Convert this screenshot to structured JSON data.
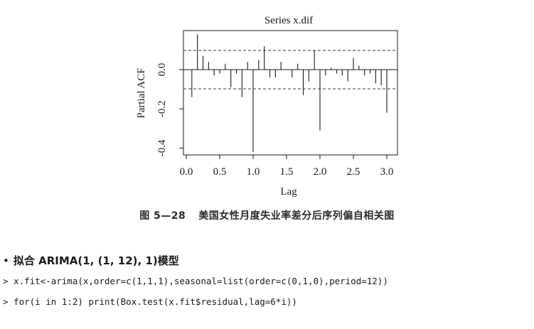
{
  "chart_data": {
    "type": "bar",
    "title": "Series x.dif",
    "xlabel": "Lag",
    "ylabel": "Partial ACF",
    "xlim": [
      0.0,
      3.05
    ],
    "ylim": [
      -0.44,
      0.19
    ],
    "xticks": [
      {
        "value": 0.0,
        "label": "0.0"
      },
      {
        "value": 0.5,
        "label": "0.5"
      },
      {
        "value": 1.0,
        "label": "1.0"
      },
      {
        "value": 1.5,
        "label": "1.5"
      },
      {
        "value": 2.0,
        "label": "2.0"
      },
      {
        "value": 2.5,
        "label": "2.5"
      },
      {
        "value": 3.0,
        "label": "3.0"
      }
    ],
    "yticks": [
      {
        "value": 0.0,
        "label": "0.0"
      },
      {
        "value": -0.2,
        "label": "-0.2"
      },
      {
        "value": -0.4,
        "label": "-0.4"
      }
    ],
    "confidence_band": [
      0.098,
      -0.098
    ],
    "lags": [
      0.0833,
      0.1667,
      0.25,
      0.3333,
      0.4167,
      0.5,
      0.5833,
      0.6667,
      0.75,
      0.8333,
      0.9167,
      1.0,
      1.0833,
      1.1667,
      1.25,
      1.3333,
      1.4167,
      1.5,
      1.5833,
      1.6667,
      1.75,
      1.8333,
      1.9167,
      2.0,
      2.0833,
      2.1667,
      2.25,
      2.3333,
      2.4167,
      2.5,
      2.5833,
      2.6667,
      2.75,
      2.8333,
      2.9167,
      3.0
    ],
    "values": [
      -0.14,
      0.18,
      0.07,
      0.04,
      -0.03,
      -0.02,
      0.03,
      -0.09,
      -0.02,
      -0.14,
      0.04,
      -0.42,
      0.05,
      0.12,
      -0.04,
      -0.04,
      0.04,
      0.0,
      -0.04,
      0.03,
      -0.13,
      -0.06,
      0.1,
      -0.31,
      -0.03,
      0.01,
      -0.02,
      -0.03,
      -0.06,
      0.06,
      0.02,
      -0.03,
      -0.02,
      -0.07,
      -0.08,
      -0.22
    ]
  },
  "caption": {
    "number": "图 5—28",
    "text": "美国女性月度失业率差分后序列偏自相关图"
  },
  "section": {
    "bullet": "•",
    "heading": "拟合 ARIMA(1, (1, 12), 1)模型"
  },
  "code": [
    "> x.fit<-arima(x,order=c(1,1,1),seasonal=list(order=c(0,1,0),period=12))",
    "> for(i in 1:2) print(Box.test(x.fit$residual,lag=6*i))"
  ],
  "colors": {
    "ink": "#1a1a1a",
    "band": "#3a3a3a",
    "background": "#ffffff"
  }
}
